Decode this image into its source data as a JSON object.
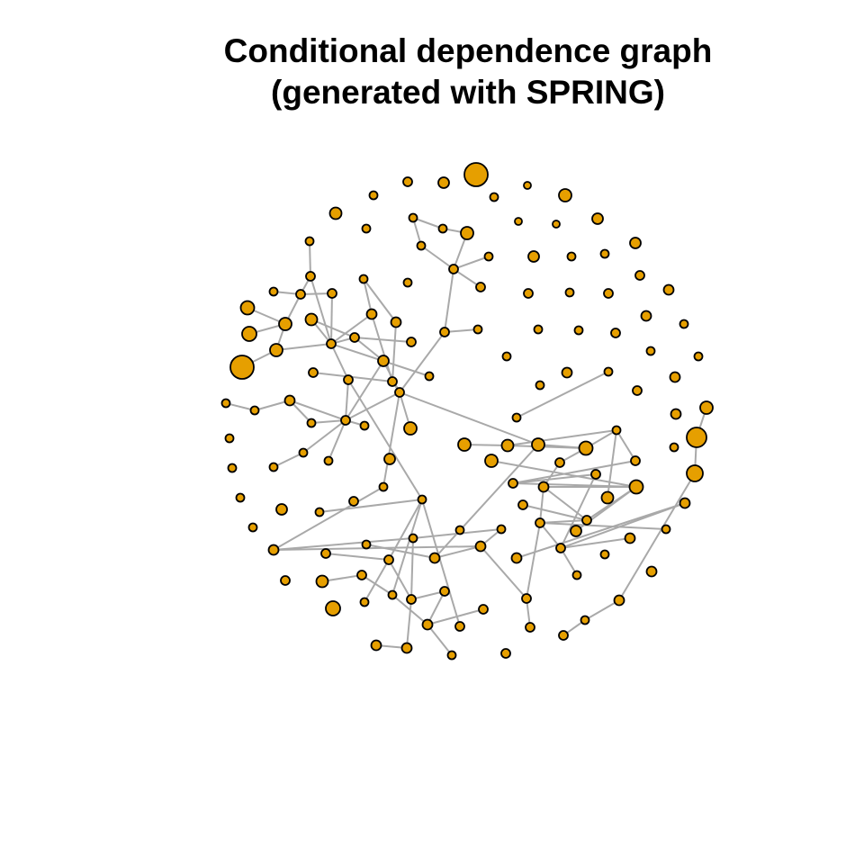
{
  "title": {
    "line1": "Conditional dependence graph",
    "line2": "(generated with SPRING)"
  },
  "colors": {
    "node_fill": "#E69F00",
    "node_stroke": "#000000",
    "edge": "#a9a9a9",
    "background": "#ffffff"
  },
  "graph": {
    "node_count": 149,
    "edge_count": 111,
    "method": "SPRING"
  }
}
